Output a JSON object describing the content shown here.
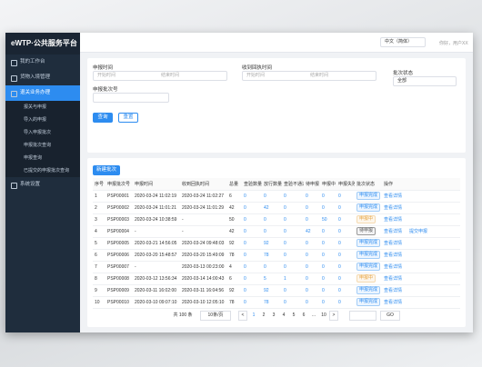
{
  "sidebar": {
    "title": "eWTP·公共服务平台",
    "menu": [
      {
        "label": "我的工作台"
      },
      {
        "label": "货物入境管理"
      },
      {
        "label": "退关业务办理",
        "children": [
          "报关与申报",
          "导入的申报",
          "导入申报批次",
          "申报批次查询",
          "申报查询",
          "已提交的申报批次查询"
        ]
      },
      {
        "label": "系统设置"
      }
    ]
  },
  "header": {
    "language": "中文（简体）",
    "user": "你好，用户XX"
  },
  "filters": {
    "declare_time": {
      "label": "申报时间",
      "start": "开始时间",
      "end": "结束时间"
    },
    "receipt_time": {
      "label": "收到回执时间",
      "start": "开始时间",
      "end": "结束时间"
    },
    "batch_status": {
      "label": "批次状态",
      "value": "全部"
    },
    "batch_no": {
      "label": "申报批次号"
    },
    "search": "查询",
    "reset": "重置"
  },
  "table": {
    "new_button": "新建批次",
    "columns": [
      "序号",
      "申报批次号",
      "申报时间",
      "收到回执时间",
      "总量",
      "查验数量",
      "放行数量",
      "查验不通过",
      "待申报",
      "申报中",
      "申报失败",
      "批次状态",
      "操作"
    ],
    "rows": [
      {
        "cells": [
          1,
          "PSP00001",
          "2020-03-24 11:02:19",
          "2020-03-24 11:02:27",
          6,
          0,
          0,
          0,
          0,
          0,
          0,
          "申报完成"
        ],
        "actions": [
          "查看详情"
        ]
      },
      {
        "cells": [
          2,
          "PSP00002",
          "2020-03-24 11:01:21",
          "2020-03-24 11:01:29",
          42,
          0,
          42,
          0,
          0,
          0,
          0,
          "申报完成"
        ],
        "actions": [
          "查看详情"
        ]
      },
      {
        "cells": [
          3,
          "PSP00003",
          "2020-03-24 10:38:59",
          "-",
          50,
          0,
          0,
          0,
          0,
          50,
          0,
          "申报中"
        ],
        "actions": [
          "查看详情"
        ]
      },
      {
        "cells": [
          4,
          "PSP00004",
          "-",
          "-",
          42,
          0,
          0,
          0,
          42,
          0,
          0,
          "待申报"
        ],
        "actions": [
          "查看详情",
          "提交申报"
        ]
      },
      {
        "cells": [
          5,
          "PSP00005",
          "2020-03-21 14:56:05",
          "2020-03-24 09:48:03",
          92,
          0,
          92,
          0,
          0,
          0,
          0,
          "申报完成"
        ],
        "actions": [
          "查看详情"
        ]
      },
      {
        "cells": [
          6,
          "PSP00006",
          "2020-03-20 15:48:57",
          "2020-03-20 15:49:09",
          78,
          0,
          78,
          0,
          0,
          0,
          0,
          "申报完成"
        ],
        "actions": [
          "查看详情"
        ]
      },
      {
        "cells": [
          7,
          "PSP00007",
          "-",
          "2020-03-13 00:23:00",
          4,
          0,
          0,
          0,
          0,
          0,
          0,
          "申报完成"
        ],
        "actions": [
          "查看详情"
        ]
      },
      {
        "cells": [
          8,
          "PSP00008",
          "2020-03-12 13:56:34",
          "2020-03-14 14:00:43",
          6,
          0,
          5,
          1,
          0,
          0,
          0,
          "申报中"
        ],
        "actions": [
          "查看详情"
        ]
      },
      {
        "cells": [
          9,
          "PSP00009",
          "2020-03-11 16:02:00",
          "2020-03-11 16:04:56",
          92,
          0,
          92,
          0,
          0,
          0,
          0,
          "申报完成"
        ],
        "actions": [
          "查看详情"
        ]
      },
      {
        "cells": [
          10,
          "PSP00010",
          "2020-03-10 09:07:10",
          "2020-03-10 12:05:10",
          78,
          0,
          78,
          0,
          0,
          0,
          0,
          "申报完成"
        ],
        "actions": [
          "查看详情"
        ]
      }
    ]
  },
  "pagination": {
    "total": "共 100 条",
    "page_size": "10条/页",
    "prev": "<",
    "pages": [
      "1",
      "2",
      "3",
      "4",
      "5",
      "6",
      "...",
      "10"
    ],
    "next": ">",
    "go": "GO"
  }
}
